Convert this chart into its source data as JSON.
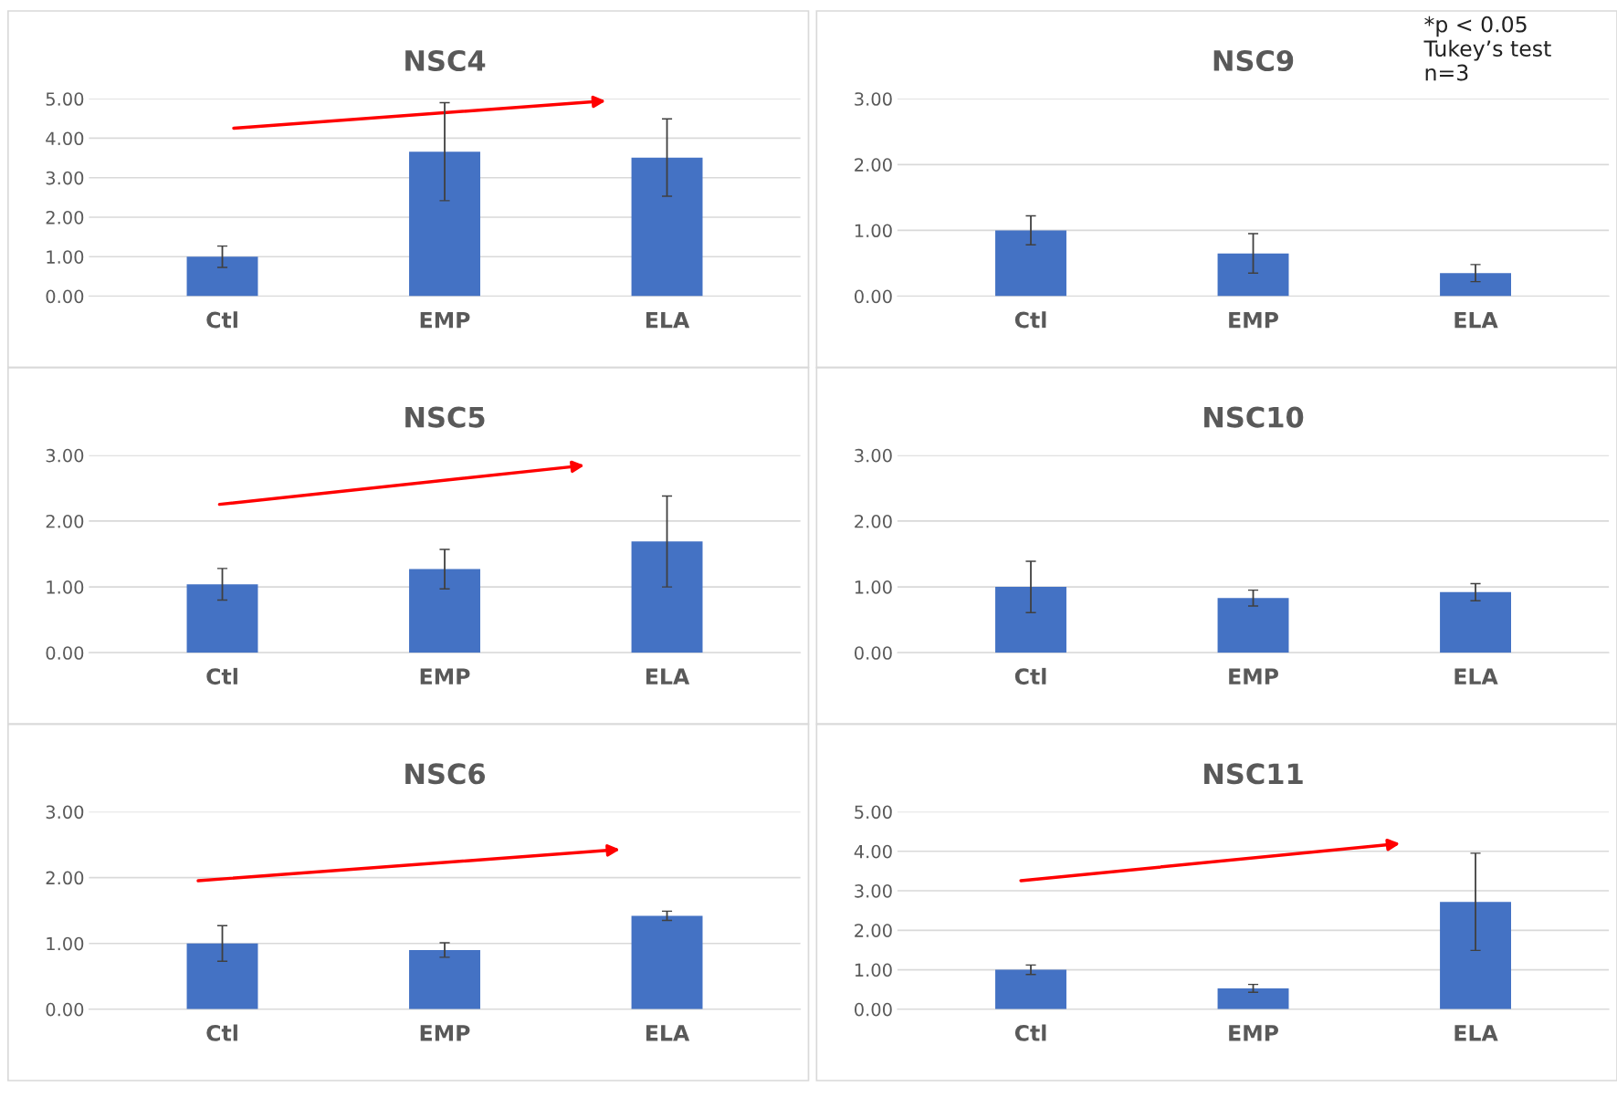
{
  "chart_data": [
    {
      "type": "bar",
      "title": "NSC4",
      "categories": [
        "Ctl",
        "EMP",
        "ELA"
      ],
      "values": [
        1.0,
        3.66,
        3.51
      ],
      "errors": [
        0.27,
        1.24,
        0.98
      ],
      "color": "#4472c4",
      "ylim": [
        0,
        5
      ],
      "yticks": [
        {
          "value": 0,
          "label": "0.00"
        },
        {
          "value": 1,
          "label": "1.00"
        },
        {
          "value": 2,
          "label": "2.00"
        },
        {
          "value": 3,
          "label": "3.00"
        },
        {
          "value": 4,
          "label": "4.00"
        },
        {
          "value": 5,
          "label": "5.00"
        }
      ],
      "grid": "y"
    },
    {
      "type": "bar",
      "title": "NSC9",
      "categories": [
        "Ctl",
        "EMP",
        "ELA"
      ],
      "values": [
        1.0,
        0.65,
        0.35
      ],
      "errors": [
        0.22,
        0.3,
        0.13
      ],
      "color": "#4472c4",
      "ylim": [
        0,
        3
      ],
      "yticks": [
        {
          "value": 0,
          "label": "0.00"
        },
        {
          "value": 1,
          "label": "1.00"
        },
        {
          "value": 2,
          "label": "2.00"
        },
        {
          "value": 3,
          "label": "3.00"
        }
      ],
      "grid": "y",
      "annotations": [
        "*p < 0.05\nTukey’s test\nn=3"
      ]
    },
    {
      "type": "bar",
      "title": "NSC5",
      "categories": [
        "Ctl",
        "EMP",
        "ELA"
      ],
      "values": [
        1.04,
        1.27,
        1.69
      ],
      "errors": [
        0.24,
        0.3,
        0.69
      ],
      "color": "#4472c4",
      "ylim": [
        0,
        3
      ],
      "yticks": [
        {
          "value": 0,
          "label": "0.00"
        },
        {
          "value": 1,
          "label": "1.00"
        },
        {
          "value": 2,
          "label": "2.00"
        },
        {
          "value": 3,
          "label": "3.00"
        }
      ],
      "grid": "y"
    },
    {
      "type": "bar",
      "title": "NSC10",
      "categories": [
        "Ctl",
        "EMP",
        "ELA"
      ],
      "values": [
        1.0,
        0.83,
        0.92
      ],
      "errors": [
        0.39,
        0.12,
        0.13
      ],
      "color": "#4472c4",
      "ylim": [
        0,
        3
      ],
      "yticks": [
        {
          "value": 0,
          "label": "0.00"
        },
        {
          "value": 1,
          "label": "1.00"
        },
        {
          "value": 2,
          "label": "2.00"
        },
        {
          "value": 3,
          "label": "3.00"
        }
      ],
      "grid": "y"
    },
    {
      "type": "bar",
      "title": "NSC6",
      "categories": [
        "Ctl",
        "EMP",
        "ELA"
      ],
      "values": [
        1.0,
        0.9,
        1.42
      ],
      "errors": [
        0.27,
        0.11,
        0.07
      ],
      "color": "#4472c4",
      "ylim": [
        0,
        3
      ],
      "yticks": [
        {
          "value": 0,
          "label": "0.00"
        },
        {
          "value": 1,
          "label": "1.00"
        },
        {
          "value": 2,
          "label": "2.00"
        },
        {
          "value": 3,
          "label": "3.00"
        }
      ],
      "grid": "y"
    },
    {
      "type": "bar",
      "title": "NSC11",
      "categories": [
        "Ctl",
        "EMP",
        "ELA"
      ],
      "values": [
        1.0,
        0.53,
        2.72
      ],
      "errors": [
        0.12,
        0.1,
        1.23
      ],
      "color": "#4472c4",
      "ylim": [
        0,
        5
      ],
      "yticks": [
        {
          "value": 0,
          "label": "0.00"
        },
        {
          "value": 1,
          "label": "1.00"
        },
        {
          "value": 2,
          "label": "2.00"
        },
        {
          "value": 3,
          "label": "3.00"
        },
        {
          "value": 4,
          "label": "4.00"
        },
        {
          "value": 5,
          "label": "5.00"
        }
      ],
      "grid": "y"
    }
  ]
}
